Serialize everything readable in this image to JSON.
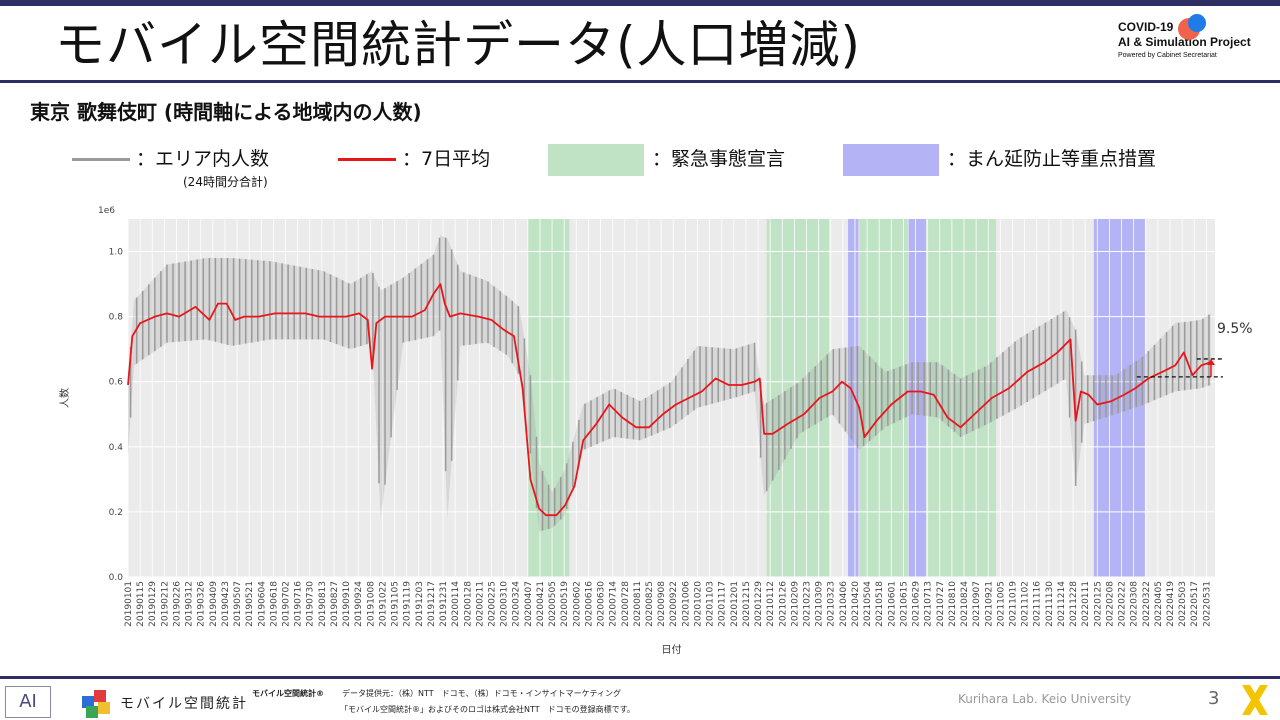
{
  "page": {
    "title": "モバイル空間統計データ(人口増減)",
    "subtitle": "東京 歌舞伎町 (時間軸による地域内の人数)",
    "page_number": "3",
    "credit": "Kurihara Lab. Keio University"
  },
  "logo": {
    "line1": "COVID-19",
    "line2": "AI & Simulation Project",
    "line3": "Powered by Cabinet Secretariat"
  },
  "legend": {
    "item1": "：エリア内人数",
    "item1_sub": "(24時間分合計)",
    "item2": "：7日平均",
    "item3": "：緊急事態宣言",
    "item4": "：まん延防止等重点措置"
  },
  "colors": {
    "raw": "#9a9a9a",
    "avg": "#e8161b",
    "emergency": "#bfe3c4",
    "priority": "#b3b3f5",
    "plot_bg": "#ebebeb",
    "header_bar": "#2e2e63"
  },
  "footer": {
    "brand": "モバイル空間統計",
    "mark": "AI",
    "reg_name": "モバイル空間統計®",
    "source": "データ提供元：（株）NTT　ドコモ、（株）ドコモ・インサイトマーケティング",
    "trademark": "「モバイル空間統計®」およびそのロゴは株式会社NTT　ドコモの登録商標です。"
  },
  "chart_data": {
    "type": "line",
    "title": "",
    "xlabel": "日付",
    "ylabel": "人数",
    "y_multiplier_label": "1e6",
    "ylim": [
      0,
      1.1
    ],
    "yticks": [
      "0.0",
      "0.2",
      "0.4",
      "0.6",
      "0.8",
      "1.0"
    ],
    "grid": true,
    "x_start": "2019-01-01",
    "x_end": "2022-06-10",
    "xtick_labels": [
      "20190101",
      "20190115",
      "20190129",
      "20190212",
      "20190226",
      "20190312",
      "20190326",
      "20190409",
      "20190423",
      "20190507",
      "20190521",
      "20190604",
      "20190618",
      "20190702",
      "20190716",
      "20190730",
      "20190813",
      "20190827",
      "20190910",
      "20190924",
      "20191008",
      "20191022",
      "20191105",
      "20191119",
      "20191203",
      "20191217",
      "20191231",
      "20200114",
      "20200128",
      "20200211",
      "20200225",
      "20200310",
      "20200324",
      "20200407",
      "20200421",
      "20200505",
      "20200519",
      "20200602",
      "20200616",
      "20200630",
      "20200714",
      "20200728",
      "20200811",
      "20200825",
      "20200908",
      "20200922",
      "20201006",
      "20201020",
      "20201103",
      "20201117",
      "20201201",
      "20201215",
      "20201229",
      "20210112",
      "20210126",
      "20210209",
      "20210223",
      "20210309",
      "20210323",
      "20210406",
      "20210420",
      "20210504",
      "20210518",
      "20210601",
      "20210615",
      "20210629",
      "20210713",
      "20210727",
      "20210810",
      "20210824",
      "20210907",
      "20210921",
      "20211005",
      "20211019",
      "20211102",
      "20211116",
      "20211130",
      "20211214",
      "20211228",
      "20220111",
      "20220125",
      "20220208",
      "20220222",
      "20220308",
      "20220322",
      "20220405",
      "20220419",
      "20220503",
      "20220517",
      "20220531"
    ],
    "emergency_periods": [
      [
        "2020-04-07",
        "2020-05-25"
      ],
      [
        "2021-01-08",
        "2021-03-21"
      ],
      [
        "2021-04-25",
        "2021-06-20"
      ],
      [
        "2021-07-12",
        "2021-09-30"
      ]
    ],
    "priority_periods": [
      [
        "2021-04-12",
        "2021-04-24"
      ],
      [
        "2021-06-21",
        "2021-07-11"
      ],
      [
        "2022-01-21",
        "2022-03-21"
      ]
    ],
    "series": [
      {
        "name": "エリア内人数",
        "kind": "raw_envelope",
        "x": [
          "2019-01-01",
          "2019-01-08",
          "2019-02-15",
          "2019-04-01",
          "2019-05-01",
          "2019-06-15",
          "2019-08-15",
          "2019-09-15",
          "2019-10-10",
          "2019-10-20",
          "2019-11-15",
          "2019-12-20",
          "2019-12-28",
          "2020-01-05",
          "2020-01-20",
          "2020-02-20",
          "2020-03-15",
          "2020-03-28",
          "2020-04-10",
          "2020-04-20",
          "2020-05-05",
          "2020-05-20",
          "2020-06-10",
          "2020-07-15",
          "2020-08-15",
          "2020-09-20",
          "2020-10-20",
          "2020-12-01",
          "2020-12-25",
          "2021-01-05",
          "2021-02-15",
          "2021-03-25",
          "2021-04-25",
          "2021-05-25",
          "2021-06-25",
          "2021-07-25",
          "2021-08-20",
          "2021-09-20",
          "2021-10-25",
          "2021-11-25",
          "2021-12-20",
          "2021-12-31",
          "2022-01-10",
          "2022-02-15",
          "2022-03-20",
          "2022-04-25",
          "2022-05-25",
          "2022-06-05"
        ],
        "low": [
          0.37,
          0.65,
          0.72,
          0.73,
          0.71,
          0.73,
          0.73,
          0.7,
          0.72,
          0.18,
          0.72,
          0.74,
          0.76,
          0.18,
          0.71,
          0.72,
          0.68,
          0.62,
          0.38,
          0.14,
          0.15,
          0.19,
          0.39,
          0.43,
          0.42,
          0.46,
          0.52,
          0.55,
          0.57,
          0.25,
          0.44,
          0.5,
          0.39,
          0.46,
          0.5,
          0.49,
          0.43,
          0.47,
          0.52,
          0.57,
          0.61,
          0.28,
          0.47,
          0.5,
          0.53,
          0.57,
          0.58,
          0.59
        ],
        "high": [
          0.6,
          0.85,
          0.96,
          0.98,
          0.98,
          0.97,
          0.94,
          0.9,
          0.94,
          0.88,
          0.92,
          0.99,
          1.05,
          1.04,
          0.94,
          0.91,
          0.86,
          0.83,
          0.62,
          0.35,
          0.26,
          0.33,
          0.53,
          0.58,
          0.54,
          0.6,
          0.71,
          0.7,
          0.72,
          0.53,
          0.6,
          0.7,
          0.71,
          0.63,
          0.66,
          0.66,
          0.61,
          0.65,
          0.73,
          0.78,
          0.82,
          0.76,
          0.62,
          0.62,
          0.68,
          0.78,
          0.79,
          0.81
        ]
      },
      {
        "name": "7日平均",
        "x": [
          "2019-01-01",
          "2019-01-06",
          "2019-01-15",
          "2019-02-01",
          "2019-02-15",
          "2019-03-01",
          "2019-03-20",
          "2019-04-05",
          "2019-04-15",
          "2019-04-25",
          "2019-05-05",
          "2019-05-15",
          "2019-06-01",
          "2019-06-20",
          "2019-07-10",
          "2019-07-25",
          "2019-08-10",
          "2019-08-25",
          "2019-09-10",
          "2019-09-25",
          "2019-10-05",
          "2019-10-10",
          "2019-10-15",
          "2019-10-25",
          "2019-11-10",
          "2019-11-25",
          "2019-12-10",
          "2019-12-20",
          "2019-12-28",
          "2020-01-02",
          "2020-01-08",
          "2020-01-20",
          "2020-02-10",
          "2020-02-25",
          "2020-03-10",
          "2020-03-22",
          "2020-04-01",
          "2020-04-10",
          "2020-04-20",
          "2020-04-28",
          "2020-05-10",
          "2020-05-20",
          "2020-05-31",
          "2020-06-10",
          "2020-06-25",
          "2020-07-10",
          "2020-07-25",
          "2020-08-10",
          "2020-08-25",
          "2020-09-10",
          "2020-09-25",
          "2020-10-10",
          "2020-10-25",
          "2020-11-10",
          "2020-11-25",
          "2020-12-10",
          "2020-12-25",
          "2020-12-31",
          "2021-01-05",
          "2021-01-15",
          "2021-02-01",
          "2021-02-20",
          "2021-03-10",
          "2021-03-25",
          "2021-04-05",
          "2021-04-15",
          "2021-04-25",
          "2021-05-01",
          "2021-05-15",
          "2021-06-01",
          "2021-06-20",
          "2021-07-05",
          "2021-07-20",
          "2021-08-05",
          "2021-08-20",
          "2021-09-05",
          "2021-09-25",
          "2021-10-15",
          "2021-11-05",
          "2021-11-25",
          "2021-12-10",
          "2021-12-25",
          "2021-12-31",
          "2022-01-06",
          "2022-01-15",
          "2022-01-25",
          "2022-02-10",
          "2022-02-25",
          "2022-03-10",
          "2022-03-25",
          "2022-04-10",
          "2022-04-25",
          "2022-05-05",
          "2022-05-15",
          "2022-05-25",
          "2022-06-05"
        ],
        "values": [
          0.59,
          0.74,
          0.78,
          0.8,
          0.81,
          0.8,
          0.83,
          0.79,
          0.84,
          0.84,
          0.79,
          0.8,
          0.8,
          0.81,
          0.81,
          0.81,
          0.8,
          0.8,
          0.8,
          0.81,
          0.79,
          0.64,
          0.78,
          0.8,
          0.8,
          0.8,
          0.82,
          0.87,
          0.9,
          0.84,
          0.8,
          0.81,
          0.8,
          0.79,
          0.76,
          0.74,
          0.58,
          0.3,
          0.21,
          0.19,
          0.19,
          0.22,
          0.28,
          0.42,
          0.47,
          0.53,
          0.49,
          0.46,
          0.46,
          0.5,
          0.53,
          0.55,
          0.57,
          0.61,
          0.59,
          0.59,
          0.6,
          0.61,
          0.44,
          0.44,
          0.47,
          0.5,
          0.55,
          0.57,
          0.6,
          0.58,
          0.52,
          0.43,
          0.48,
          0.53,
          0.57,
          0.57,
          0.56,
          0.49,
          0.46,
          0.5,
          0.55,
          0.58,
          0.63,
          0.66,
          0.69,
          0.73,
          0.48,
          0.57,
          0.56,
          0.53,
          0.54,
          0.56,
          0.58,
          0.61,
          0.63,
          0.65,
          0.69,
          0.62,
          0.65,
          0.66
        ]
      }
    ],
    "annotation": {
      "text": "9.5%",
      "from_value": 0.615,
      "to_value": 0.67
    }
  }
}
